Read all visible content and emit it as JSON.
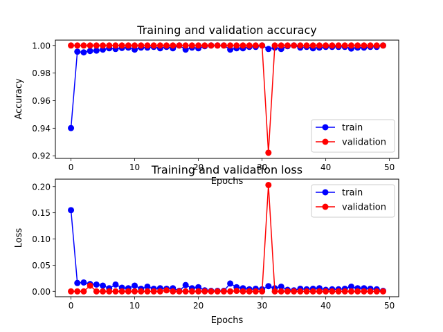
{
  "chart_data": [
    {
      "type": "line",
      "title": "Training and validation accuracy",
      "xlabel": "Epochs",
      "ylabel": "Accuracy",
      "xlim": [
        -2.45,
        51.45
      ],
      "ylim": [
        0.9181,
        1.0039
      ],
      "xticks": [
        0,
        10,
        20,
        30,
        40,
        50
      ],
      "xtick_labels": [
        "0",
        "10",
        "20",
        "30",
        "40",
        "50"
      ],
      "yticks": [
        0.92,
        0.94,
        0.96,
        0.98,
        1.0
      ],
      "ytick_labels": [
        "0.92",
        "0.94",
        "0.96",
        "0.98",
        "1.00"
      ],
      "grid": false,
      "legend_position": "lower-right",
      "x": [
        0,
        1,
        2,
        3,
        4,
        5,
        6,
        7,
        8,
        9,
        10,
        11,
        12,
        13,
        14,
        15,
        16,
        17,
        18,
        19,
        20,
        21,
        22,
        23,
        24,
        25,
        26,
        27,
        28,
        29,
        30,
        31,
        32,
        33,
        34,
        35,
        36,
        37,
        38,
        39,
        40,
        41,
        42,
        43,
        44,
        45,
        46,
        47,
        48,
        49
      ],
      "series": [
        {
          "name": "train",
          "color": "#0000ff",
          "values": [
            0.9401,
            0.9955,
            0.995,
            0.996,
            0.9963,
            0.997,
            0.998,
            0.9975,
            0.9982,
            0.9985,
            0.997,
            0.9985,
            0.9985,
            0.999,
            0.998,
            0.999,
            0.998,
            1.0,
            0.997,
            0.9985,
            0.998,
            0.9995,
            1.0,
            1.0,
            1.0,
            0.997,
            0.998,
            0.998,
            0.999,
            0.999,
            1.0,
            0.9975,
            0.9985,
            0.9975,
            0.9995,
            1.0,
            0.9985,
            0.999,
            0.998,
            0.9985,
            0.999,
            0.999,
            0.999,
            0.999,
            0.9978,
            0.9985,
            0.9985,
            0.999,
            0.999,
            1.0
          ]
        },
        {
          "name": "validation",
          "color": "#ff0000",
          "values": [
            1.0,
            1.0,
            1.0,
            1.0,
            1.0,
            1.0,
            1.0,
            1.0,
            1.0,
            1.0,
            1.0,
            1.0,
            1.0,
            1.0,
            1.0,
            1.0,
            1.0,
            1.0,
            1.0,
            1.0,
            1.0,
            1.0,
            1.0,
            1.0,
            1.0,
            1.0,
            1.0,
            1.0,
            1.0,
            1.0,
            1.0,
            0.9222,
            1.0,
            1.0,
            1.0,
            1.0,
            1.0,
            1.0,
            1.0,
            1.0,
            1.0,
            1.0,
            1.0,
            1.0,
            1.0,
            1.0,
            1.0,
            1.0,
            1.0,
            1.0
          ]
        }
      ]
    },
    {
      "type": "line",
      "title": "Training and validation loss",
      "xlabel": "Epochs",
      "ylabel": "Loss",
      "xlim": [
        -2.45,
        51.45
      ],
      "ylim": [
        -0.0102,
        0.2142
      ],
      "xticks": [
        0,
        10,
        20,
        30,
        40,
        50
      ],
      "xtick_labels": [
        "0",
        "10",
        "20",
        "30",
        "40",
        "50"
      ],
      "yticks": [
        0.0,
        0.05,
        0.1,
        0.15,
        0.2
      ],
      "ytick_labels": [
        "0.00",
        "0.05",
        "0.10",
        "0.15",
        "0.20"
      ],
      "grid": false,
      "legend_position": "upper-right",
      "x": [
        0,
        1,
        2,
        3,
        4,
        5,
        6,
        7,
        8,
        9,
        10,
        11,
        12,
        13,
        14,
        15,
        16,
        17,
        18,
        19,
        20,
        21,
        22,
        23,
        24,
        25,
        26,
        27,
        28,
        29,
        30,
        31,
        32,
        33,
        34,
        35,
        36,
        37,
        38,
        39,
        40,
        41,
        42,
        43,
        44,
        45,
        46,
        47,
        48,
        49
      ],
      "series": [
        {
          "name": "train",
          "color": "#0000ff",
          "values": [
            0.155,
            0.016,
            0.017,
            0.014,
            0.013,
            0.011,
            0.006,
            0.013,
            0.007,
            0.006,
            0.011,
            0.005,
            0.009,
            0.005,
            0.006,
            0.005,
            0.006,
            0.001,
            0.012,
            0.006,
            0.008,
            0.002,
            0.001,
            0.001,
            0.001,
            0.015,
            0.008,
            0.006,
            0.004,
            0.005,
            0.004,
            0.01,
            0.006,
            0.009,
            0.003,
            0.002,
            0.005,
            0.004,
            0.005,
            0.006,
            0.003,
            0.004,
            0.004,
            0.005,
            0.009,
            0.006,
            0.006,
            0.005,
            0.004,
            0.001
          ]
        },
        {
          "name": "validation",
          "color": "#ff0000",
          "values": [
            0.0,
            0.0,
            0.0,
            0.011,
            0.0,
            0.0,
            0.0,
            0.0,
            0.0,
            0.0,
            0.0,
            0.0,
            0.0,
            0.0,
            0.0,
            0.002,
            0.0,
            0.0,
            0.0,
            0.0,
            0.0,
            0.0,
            0.0,
            0.0,
            0.0,
            0.0,
            0.001,
            0.0,
            0.0,
            0.0,
            0.0,
            0.203,
            0.0,
            0.0,
            0.0,
            0.0,
            0.0,
            0.0,
            0.0,
            0.0,
            0.0,
            0.0,
            0.0,
            0.0,
            0.0,
            0.0,
            0.0,
            0.0,
            0.0,
            0.0
          ]
        }
      ]
    }
  ]
}
